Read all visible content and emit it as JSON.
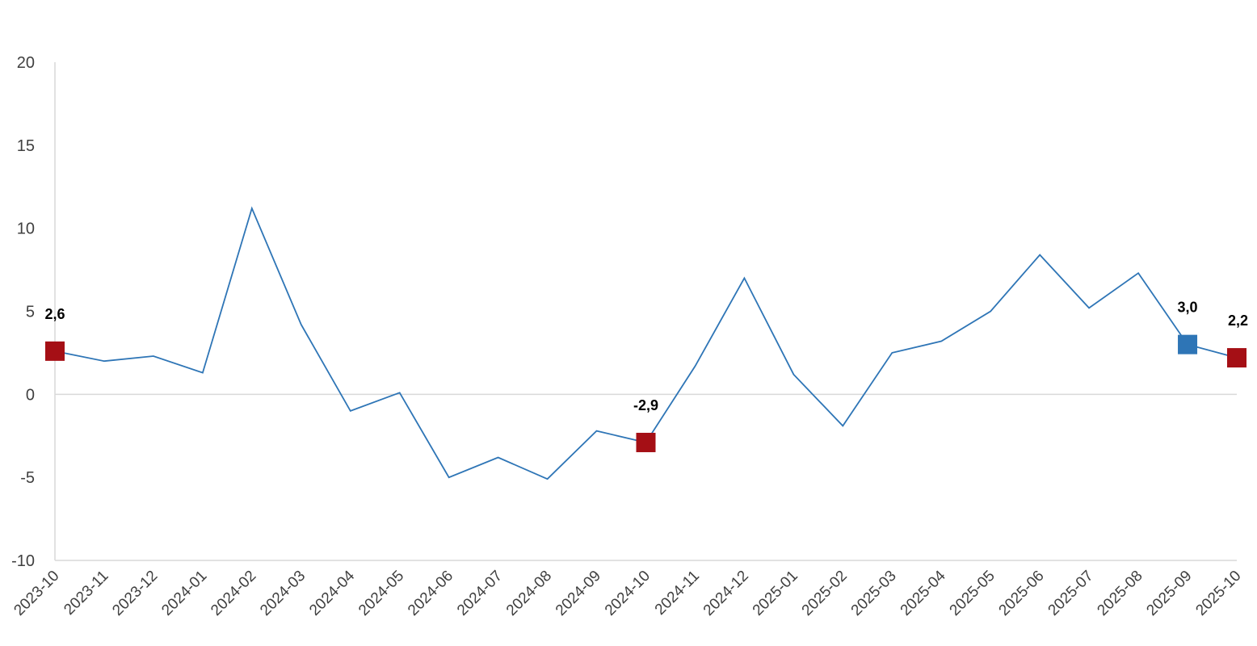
{
  "chart_data": {
    "type": "line",
    "categories": [
      "2023-10",
      "2023-11",
      "2023-12",
      "2024-01",
      "2024-02",
      "2024-03",
      "2024-04",
      "2024-05",
      "2024-06",
      "2024-07",
      "2024-08",
      "2024-09",
      "2024-10",
      "2024-11",
      "2024-12",
      "2025-01",
      "2025-02",
      "2025-03",
      "2025-04",
      "2025-05",
      "2025-06",
      "2025-07",
      "2025-08",
      "2025-09",
      "2025-10"
    ],
    "series": [
      {
        "values": [
          2.6,
          2.0,
          2.3,
          1.3,
          11.2,
          4.2,
          -1.0,
          0.1,
          -5.0,
          -3.8,
          -5.1,
          -2.2,
          -2.9,
          1.7,
          7.0,
          1.2,
          -1.9,
          2.5,
          3.2,
          5.0,
          8.4,
          5.2,
          7.3,
          3.0,
          2.2
        ],
        "color": "#2e75b6"
      }
    ],
    "highlighted_points": [
      {
        "category": "2023-10",
        "value": 2.6,
        "label": "2,6",
        "color": "#a50f15"
      },
      {
        "category": "2024-10",
        "value": -2.9,
        "label": "-2,9",
        "color": "#a50f15"
      },
      {
        "category": "2025-09",
        "value": 3.0,
        "label": "3,0",
        "color": "#2e75b6"
      },
      {
        "category": "2025-10",
        "value": 2.2,
        "label": "2,2",
        "color": "#a50f15"
      }
    ],
    "y_ticks": [
      "20",
      "15",
      "10",
      "5",
      "0",
      "-5",
      "-10"
    ],
    "ylim": [
      -10,
      20
    ],
    "title": "",
    "xlabel": "",
    "ylabel": "",
    "grid": false,
    "zero_line": true,
    "legend": "none"
  }
}
